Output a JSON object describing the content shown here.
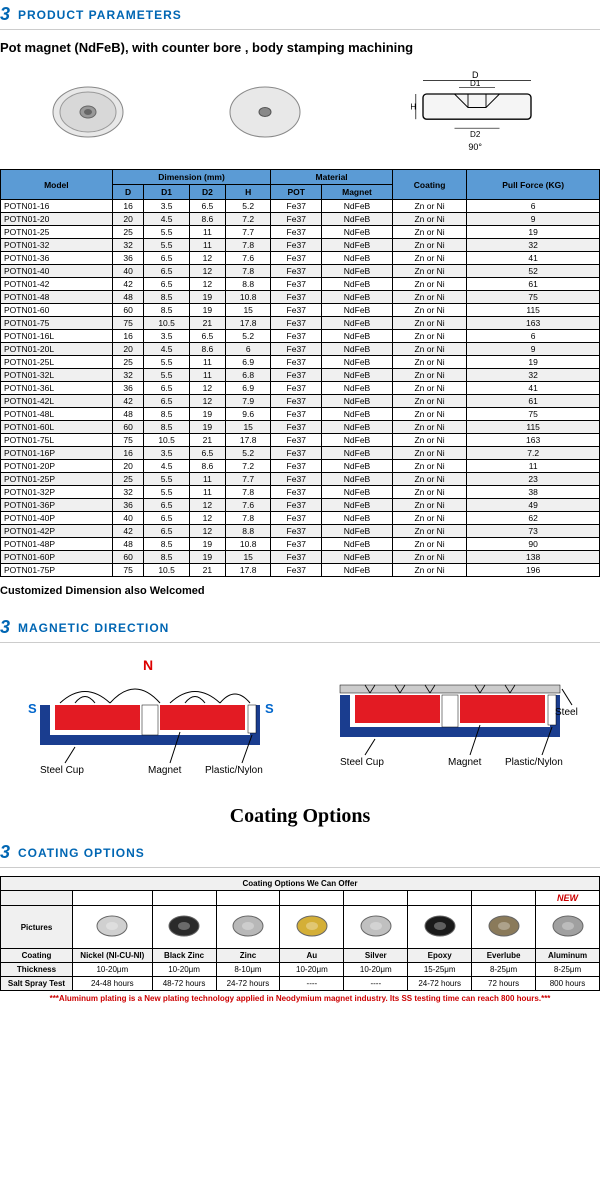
{
  "section1": {
    "title": "PRODUCT PARAMETERS"
  },
  "productTitle": "Pot magnet (NdFeB), with counter bore , body stamping machining",
  "diagramLabels": {
    "D": "D",
    "D1": "D1",
    "D2": "D2",
    "H": "H",
    "angle": "90°"
  },
  "tableHeaders": {
    "model": "Model",
    "dimension": "Dimension (mm)",
    "material": "Material",
    "D": "D",
    "D1": "D1",
    "D2": "D2",
    "H": "H",
    "POT": "POT",
    "Magnet": "Magnet",
    "coating": "Coating",
    "pullForce": "Pull Force (KG)"
  },
  "rows": [
    {
      "model": "POTN01-16",
      "D": "16",
      "D1": "3.5",
      "D2": "6.5",
      "H": "5.2",
      "pot": "Fe37",
      "mag": "NdFeB",
      "coat": "Zn or Ni",
      "force": "6"
    },
    {
      "model": "POTN01-20",
      "D": "20",
      "D1": "4.5",
      "D2": "8.6",
      "H": "7.2",
      "pot": "Fe37",
      "mag": "NdFeB",
      "coat": "Zn or Ni",
      "force": "9"
    },
    {
      "model": "POTN01-25",
      "D": "25",
      "D1": "5.5",
      "D2": "11",
      "H": "7.7",
      "pot": "Fe37",
      "mag": "NdFeB",
      "coat": "Zn or Ni",
      "force": "19"
    },
    {
      "model": "POTN01-32",
      "D": "32",
      "D1": "5.5",
      "D2": "11",
      "H": "7.8",
      "pot": "Fe37",
      "mag": "NdFeB",
      "coat": "Zn or Ni",
      "force": "32"
    },
    {
      "model": "POTN01-36",
      "D": "36",
      "D1": "6.5",
      "D2": "12",
      "H": "7.6",
      "pot": "Fe37",
      "mag": "NdFeB",
      "coat": "Zn or Ni",
      "force": "41"
    },
    {
      "model": "POTN01-40",
      "D": "40",
      "D1": "6.5",
      "D2": "12",
      "H": "7.8",
      "pot": "Fe37",
      "mag": "NdFeB",
      "coat": "Zn or Ni",
      "force": "52"
    },
    {
      "model": "POTN01-42",
      "D": "42",
      "D1": "6.5",
      "D2": "12",
      "H": "8.8",
      "pot": "Fe37",
      "mag": "NdFeB",
      "coat": "Zn or Ni",
      "force": "61"
    },
    {
      "model": "POTN01-48",
      "D": "48",
      "D1": "8.5",
      "D2": "19",
      "H": "10.8",
      "pot": "Fe37",
      "mag": "NdFeB",
      "coat": "Zn or Ni",
      "force": "75"
    },
    {
      "model": "POTN01-60",
      "D": "60",
      "D1": "8.5",
      "D2": "19",
      "H": "15",
      "pot": "Fe37",
      "mag": "NdFeB",
      "coat": "Zn or Ni",
      "force": "115"
    },
    {
      "model": "POTN01-75",
      "D": "75",
      "D1": "10.5",
      "D2": "21",
      "H": "17.8",
      "pot": "Fe37",
      "mag": "NdFeB",
      "coat": "Zn or Ni",
      "force": "163"
    },
    {
      "model": "POTN01-16L",
      "D": "16",
      "D1": "3.5",
      "D2": "6.5",
      "H": "5.2",
      "pot": "Fe37",
      "mag": "NdFeB",
      "coat": "Zn or Ni",
      "force": "6"
    },
    {
      "model": "POTN01-20L",
      "D": "20",
      "D1": "4.5",
      "D2": "8.6",
      "H": "6",
      "pot": "Fe37",
      "mag": "NdFeB",
      "coat": "Zn or Ni",
      "force": "9"
    },
    {
      "model": "POTN01-25L",
      "D": "25",
      "D1": "5.5",
      "D2": "11",
      "H": "6.9",
      "pot": "Fe37",
      "mag": "NdFeB",
      "coat": "Zn or Ni",
      "force": "19"
    },
    {
      "model": "POTN01-32L",
      "D": "32",
      "D1": "5.5",
      "D2": "11",
      "H": "6.8",
      "pot": "Fe37",
      "mag": "NdFeB",
      "coat": "Zn or Ni",
      "force": "32"
    },
    {
      "model": "POTN01-36L",
      "D": "36",
      "D1": "6.5",
      "D2": "12",
      "H": "6.9",
      "pot": "Fe37",
      "mag": "NdFeB",
      "coat": "Zn or Ni",
      "force": "41"
    },
    {
      "model": "POTN01-42L",
      "D": "42",
      "D1": "6.5",
      "D2": "12",
      "H": "7.9",
      "pot": "Fe37",
      "mag": "NdFeB",
      "coat": "Zn or Ni",
      "force": "61"
    },
    {
      "model": "POTN01-48L",
      "D": "48",
      "D1": "8.5",
      "D2": "19",
      "H": "9.6",
      "pot": "Fe37",
      "mag": "NdFeB",
      "coat": "Zn or Ni",
      "force": "75"
    },
    {
      "model": "POTN01-60L",
      "D": "60",
      "D1": "8.5",
      "D2": "19",
      "H": "15",
      "pot": "Fe37",
      "mag": "NdFeB",
      "coat": "Zn or Ni",
      "force": "115"
    },
    {
      "model": "POTN01-75L",
      "D": "75",
      "D1": "10.5",
      "D2": "21",
      "H": "17.8",
      "pot": "Fe37",
      "mag": "NdFeB",
      "coat": "Zn or Ni",
      "force": "163"
    },
    {
      "model": "POTN01-16P",
      "D": "16",
      "D1": "3.5",
      "D2": "6.5",
      "H": "5.2",
      "pot": "Fe37",
      "mag": "NdFeB",
      "coat": "Zn or Ni",
      "force": "7.2"
    },
    {
      "model": "POTN01-20P",
      "D": "20",
      "D1": "4.5",
      "D2": "8.6",
      "H": "7.2",
      "pot": "Fe37",
      "mag": "NdFeB",
      "coat": "Zn or Ni",
      "force": "11"
    },
    {
      "model": "POTN01-25P",
      "D": "25",
      "D1": "5.5",
      "D2": "11",
      "H": "7.7",
      "pot": "Fe37",
      "mag": "NdFeB",
      "coat": "Zn or Ni",
      "force": "23"
    },
    {
      "model": "POTN01-32P",
      "D": "32",
      "D1": "5.5",
      "D2": "11",
      "H": "7.8",
      "pot": "Fe37",
      "mag": "NdFeB",
      "coat": "Zn or Ni",
      "force": "38"
    },
    {
      "model": "POTN01-36P",
      "D": "36",
      "D1": "6.5",
      "D2": "12",
      "H": "7.6",
      "pot": "Fe37",
      "mag": "NdFeB",
      "coat": "Zn or Ni",
      "force": "49"
    },
    {
      "model": "POTN01-40P",
      "D": "40",
      "D1": "6.5",
      "D2": "12",
      "H": "7.8",
      "pot": "Fe37",
      "mag": "NdFeB",
      "coat": "Zn or Ni",
      "force": "62"
    },
    {
      "model": "POTN01-42P",
      "D": "42",
      "D1": "6.5",
      "D2": "12",
      "H": "8.8",
      "pot": "Fe37",
      "mag": "NdFeB",
      "coat": "Zn or Ni",
      "force": "73"
    },
    {
      "model": "POTN01-48P",
      "D": "48",
      "D1": "8.5",
      "D2": "19",
      "H": "10.8",
      "pot": "Fe37",
      "mag": "NdFeB",
      "coat": "Zn or Ni",
      "force": "90"
    },
    {
      "model": "POTN01-60P",
      "D": "60",
      "D1": "8.5",
      "D2": "19",
      "H": "15",
      "pot": "Fe37",
      "mag": "NdFeB",
      "coat": "Zn or Ni",
      "force": "138"
    },
    {
      "model": "POTN01-75P",
      "D": "75",
      "D1": "10.5",
      "D2": "21",
      "H": "17.8",
      "pot": "Fe37",
      "mag": "NdFeB",
      "coat": "Zn or Ni",
      "force": "196"
    }
  ],
  "customNote": "Customized Dimension also Welcomed",
  "section2": {
    "title": "MAGNETIC DIRECTION"
  },
  "magLabels": {
    "N": "N",
    "S": "S",
    "steelCup": "Steel Cup",
    "magnet": "Magnet",
    "plastic": "Plastic/Nylon",
    "steel": "Steel"
  },
  "coatingHeading": "Coating Options",
  "section3": {
    "title": "COATING OPTIONS"
  },
  "coatingTable": {
    "header": "Coating Options We Can Offer",
    "rowLabels": {
      "pictures": "Pictures",
      "coating": "Coating",
      "thickness": "Thickness",
      "saltSpray": "Salt Spray Test"
    },
    "cols": [
      {
        "name": "Nickel (NI-CU-NI)",
        "thick": "10-20μm",
        "salt": "24-48 hours",
        "new": false,
        "color": "#d0d0d0"
      },
      {
        "name": "Black Zinc",
        "thick": "10-20μm",
        "salt": "48-72 hours",
        "new": false,
        "color": "#2a2a2a"
      },
      {
        "name": "Zinc",
        "thick": "8-10μm",
        "salt": "24-72 hours",
        "new": false,
        "color": "#b8b8b8"
      },
      {
        "name": "Au",
        "thick": "10-20μm",
        "salt": "----",
        "new": false,
        "color": "#d4af37"
      },
      {
        "name": "Silver",
        "thick": "10-20μm",
        "salt": "----",
        "new": false,
        "color": "#c0c0c0"
      },
      {
        "name": "Epoxy",
        "thick": "15-25μm",
        "salt": "24-72 hours",
        "new": false,
        "color": "#1a1a1a"
      },
      {
        "name": "Everlube",
        "thick": "8-25μm",
        "salt": "72 hours",
        "new": false,
        "color": "#8a7a5a"
      },
      {
        "name": "Aluminum",
        "thick": "8-25μm",
        "salt": "800 hours",
        "new": true,
        "color": "#a0a0a0"
      }
    ],
    "newLabel": "NEW"
  },
  "alumNote": "***Aluminum plating is a New plating technology applied in Neodymium magnet industry. Its SS testing time can reach 800 hours.***",
  "colors": {
    "headerBlue": "#5b9bd5",
    "logoBlue": "#0066b3",
    "magRed": "#e31b23",
    "magBlue": "#1a3d8f",
    "magWhite": "#ffffff"
  }
}
